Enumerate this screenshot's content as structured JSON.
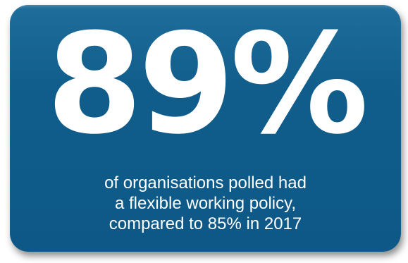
{
  "stat": {
    "value": "89%"
  },
  "caption": {
    "lines": [
      "of organisations polled had",
      "a flexible working policy,",
      "compared to 85% in 2017"
    ]
  },
  "colors": {
    "card_background": "#105d8b",
    "text": "#ffffff",
    "page_background": "#ffffff"
  }
}
